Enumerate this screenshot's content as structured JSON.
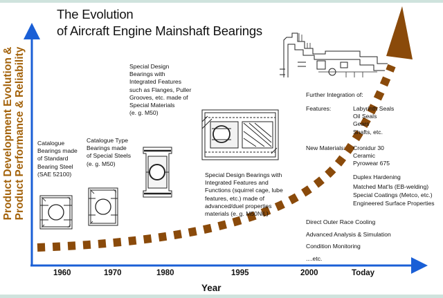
{
  "title": {
    "line1": "The Evolution",
    "line2": "of Aircraft Engine Mainshaft Bearings"
  },
  "y_axis": {
    "line1": "Product Development Evolution &",
    "line2": "Product Performance & Reliability"
  },
  "x_axis": {
    "label": "Year",
    "ticks": [
      "1960",
      "1970",
      "1980",
      "1995",
      "2000",
      "Today"
    ]
  },
  "stages": [
    {
      "lines": [
        "Catalogue",
        "Bearings made",
        "of Standard",
        "Bearing Steel",
        "(SAE 52100)"
      ]
    },
    {
      "lines": [
        "Catalogue Type",
        "Bearings made",
        "of Special Steels",
        "(e. g. M50)"
      ]
    },
    {
      "lines": [
        "Special Design",
        "Bearings with",
        "Integrated Features",
        "such as Flanges, Puller",
        "Grooves, etc. made of",
        "Special Materials",
        "(e. g. M50)"
      ]
    },
    {
      "lines": [
        "Special Design Bearings with",
        "Integrated Features and",
        "Functions (squirrel cage, lube",
        "features, etc.) made of",
        "advanced/duel properties",
        "materials (e. g. M50NiL)"
      ]
    }
  ],
  "integration": {
    "heading": "Further Integration of:",
    "features_label": "Features:",
    "features": [
      "Labyrinth Seals",
      "Oil Seals",
      "Gears",
      "Shafts, etc."
    ],
    "materials_label": "New  Materials:",
    "materials": [
      "Cronidur 30",
      "Ceramic",
      "Pyrowear 675"
    ],
    "treatments": [
      "Duplex Hardening",
      "Matched Mat'ls (EB-welding)",
      "Special Coatings (Metco, etc.)",
      "Engineered Surface Properties"
    ],
    "extras": [
      "Direct Outer Race Cooling",
      "Advanced  Analysis & Simulation",
      "Condition Monitoring",
      "....etc."
    ]
  },
  "colors": {
    "trend": "#8a4a0a",
    "axis": "#1a5fd6",
    "ylabel": "#a3620a"
  }
}
